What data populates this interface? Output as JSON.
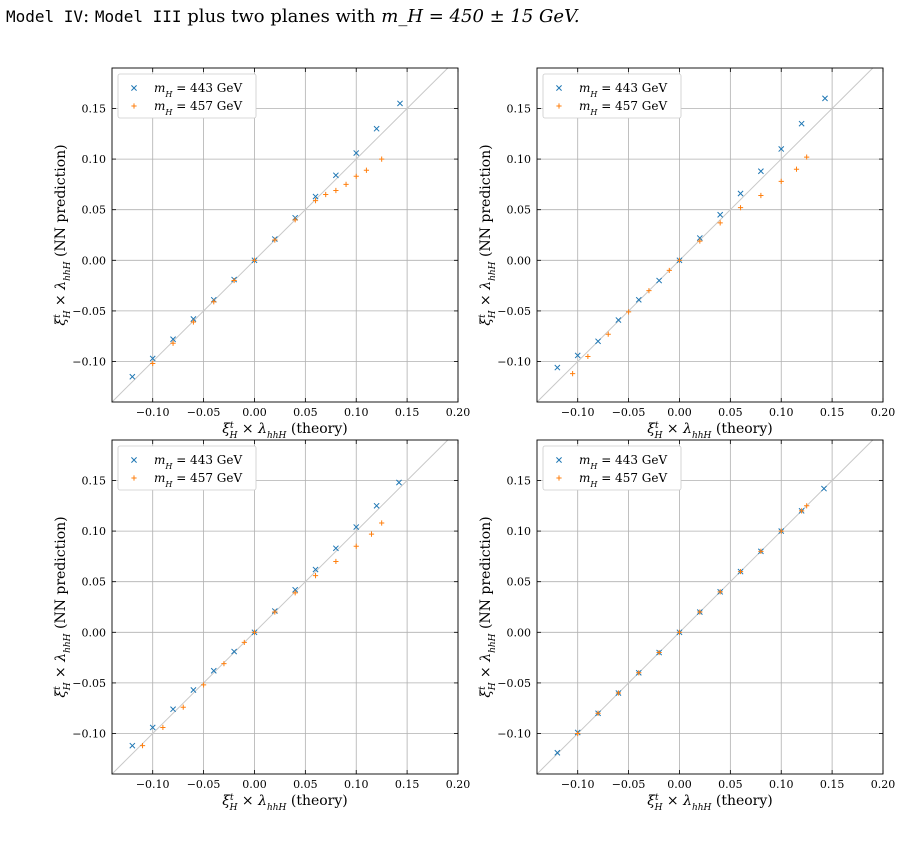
{
  "caption": {
    "model_label": "Model IV",
    "sep": ": ",
    "base_label": "Model III",
    "text": " plus two planes with ",
    "math": "m_H = 450 ± 15 GeV."
  },
  "colors": {
    "series_blue": "#1f77b4",
    "series_orange": "#ff7f0e",
    "diagonal": "#c8c8c8",
    "grid": "#b0b0b0"
  },
  "chart_data": [
    {
      "type": "scatter",
      "xlabel": "ξ_H^t × λ_hhH (theory)",
      "ylabel": "ξ_H^t × λ_hhH (NN prediction)",
      "xlim": [
        -0.14,
        0.2
      ],
      "ylim": [
        -0.14,
        0.19
      ],
      "xticks": [
        "−0.10",
        "−0.05",
        "0.00",
        "0.05",
        "0.10",
        "0.15",
        "0.20"
      ],
      "yticks": [
        "−0.10",
        "−0.05",
        "0.00",
        "0.05",
        "0.10",
        "0.15"
      ],
      "grid": true,
      "legend_position": "top-left",
      "diagonal": true,
      "series": [
        {
          "name": "m_H = 443 GeV",
          "marker": "x",
          "points": [
            [
              -0.12,
              -0.115
            ],
            [
              -0.1,
              -0.097
            ],
            [
              -0.08,
              -0.078
            ],
            [
              -0.06,
              -0.058
            ],
            [
              -0.04,
              -0.039
            ],
            [
              -0.02,
              -0.019
            ],
            [
              0.0,
              0.0
            ],
            [
              0.02,
              0.021
            ],
            [
              0.04,
              0.042
            ],
            [
              0.06,
              0.063
            ],
            [
              0.08,
              0.084
            ],
            [
              0.1,
              0.106
            ],
            [
              0.12,
              0.13
            ],
            [
              0.143,
              0.155
            ]
          ]
        },
        {
          "name": "m_H = 457 GeV",
          "marker": "+",
          "points": [
            [
              -0.1,
              -0.102
            ],
            [
              -0.08,
              -0.082
            ],
            [
              -0.06,
              -0.061
            ],
            [
              -0.04,
              -0.041
            ],
            [
              -0.02,
              -0.02
            ],
            [
              0.0,
              0.0
            ],
            [
              0.02,
              0.02
            ],
            [
              0.04,
              0.04
            ],
            [
              0.06,
              0.059
            ],
            [
              0.07,
              0.065
            ],
            [
              0.08,
              0.069
            ],
            [
              0.09,
              0.075
            ],
            [
              0.1,
              0.083
            ],
            [
              0.11,
              0.089
            ],
            [
              0.125,
              0.1
            ]
          ]
        }
      ]
    },
    {
      "type": "scatter",
      "xlabel": "ξ_H^t × λ_hhH (theory)",
      "ylabel": "ξ_H^t × λ_hhH (NN prediction)",
      "xlim": [
        -0.14,
        0.2
      ],
      "ylim": [
        -0.14,
        0.19
      ],
      "xticks": [
        "−0.10",
        "−0.05",
        "0.00",
        "0.05",
        "0.10",
        "0.15",
        "0.20"
      ],
      "yticks": [
        "−0.10",
        "−0.05",
        "0.00",
        "0.05",
        "0.10",
        "0.15"
      ],
      "grid": true,
      "legend_position": "top-left",
      "diagonal": true,
      "series": [
        {
          "name": "m_H = 443 GeV",
          "marker": "x",
          "points": [
            [
              -0.12,
              -0.106
            ],
            [
              -0.1,
              -0.094
            ],
            [
              -0.08,
              -0.08
            ],
            [
              -0.06,
              -0.059
            ],
            [
              -0.04,
              -0.039
            ],
            [
              -0.02,
              -0.02
            ],
            [
              0.0,
              0.0
            ],
            [
              0.02,
              0.022
            ],
            [
              0.04,
              0.045
            ],
            [
              0.06,
              0.066
            ],
            [
              0.08,
              0.088
            ],
            [
              0.1,
              0.11
            ],
            [
              0.12,
              0.135
            ],
            [
              0.143,
              0.16
            ]
          ]
        },
        {
          "name": "m_H = 457 GeV",
          "marker": "+",
          "points": [
            [
              -0.105,
              -0.112
            ],
            [
              -0.09,
              -0.095
            ],
            [
              -0.07,
              -0.073
            ],
            [
              -0.05,
              -0.051
            ],
            [
              -0.03,
              -0.03
            ],
            [
              -0.01,
              -0.01
            ],
            [
              0.0,
              0.0
            ],
            [
              0.02,
              0.019
            ],
            [
              0.04,
              0.037
            ],
            [
              0.06,
              0.052
            ],
            [
              0.08,
              0.064
            ],
            [
              0.1,
              0.078
            ],
            [
              0.115,
              0.09
            ],
            [
              0.125,
              0.102
            ]
          ]
        }
      ]
    },
    {
      "type": "scatter",
      "xlabel": "ξ_H^t × λ_hhH (theory)",
      "ylabel": "ξ_H^t × λ_hhH (NN prediction)",
      "xlim": [
        -0.14,
        0.2
      ],
      "ylim": [
        -0.14,
        0.19
      ],
      "xticks": [
        "−0.10",
        "−0.05",
        "0.00",
        "0.05",
        "0.10",
        "0.15",
        "0.20"
      ],
      "yticks": [
        "−0.10",
        "−0.05",
        "0.00",
        "0.05",
        "0.10",
        "0.15"
      ],
      "grid": true,
      "legend_position": "top-left",
      "diagonal": true,
      "series": [
        {
          "name": "m_H = 443 GeV",
          "marker": "x",
          "points": [
            [
              -0.12,
              -0.112
            ],
            [
              -0.1,
              -0.094
            ],
            [
              -0.08,
              -0.076
            ],
            [
              -0.06,
              -0.057
            ],
            [
              -0.04,
              -0.038
            ],
            [
              -0.02,
              -0.019
            ],
            [
              0.0,
              0.0
            ],
            [
              0.02,
              0.021
            ],
            [
              0.04,
              0.042
            ],
            [
              0.06,
              0.062
            ],
            [
              0.08,
              0.083
            ],
            [
              0.1,
              0.104
            ],
            [
              0.12,
              0.125
            ],
            [
              0.142,
              0.148
            ]
          ]
        },
        {
          "name": "m_H = 457 GeV",
          "marker": "+",
          "points": [
            [
              -0.11,
              -0.112
            ],
            [
              -0.09,
              -0.094
            ],
            [
              -0.07,
              -0.074
            ],
            [
              -0.05,
              -0.052
            ],
            [
              -0.03,
              -0.031
            ],
            [
              -0.01,
              -0.01
            ],
            [
              0.0,
              0.0
            ],
            [
              0.02,
              0.02
            ],
            [
              0.04,
              0.039
            ],
            [
              0.06,
              0.056
            ],
            [
              0.08,
              0.07
            ],
            [
              0.1,
              0.085
            ],
            [
              0.115,
              0.097
            ],
            [
              0.125,
              0.108
            ]
          ]
        }
      ]
    },
    {
      "type": "scatter",
      "xlabel": "ξ_H^t × λ_hhH (theory)",
      "ylabel": "ξ_H^t × λ_hhH (NN prediction)",
      "xlim": [
        -0.14,
        0.2
      ],
      "ylim": [
        -0.14,
        0.19
      ],
      "xticks": [
        "−0.10",
        "−0.05",
        "0.00",
        "0.05",
        "0.10",
        "0.15",
        "0.20"
      ],
      "yticks": [
        "−0.10",
        "−0.05",
        "0.00",
        "0.05",
        "0.10",
        "0.15"
      ],
      "grid": true,
      "legend_position": "top-left",
      "diagonal": true,
      "series": [
        {
          "name": "m_H = 443 GeV",
          "marker": "x",
          "points": [
            [
              -0.12,
              -0.119
            ],
            [
              -0.1,
              -0.099
            ],
            [
              -0.08,
              -0.08
            ],
            [
              -0.06,
              -0.06
            ],
            [
              -0.04,
              -0.04
            ],
            [
              -0.02,
              -0.02
            ],
            [
              0.0,
              0.0
            ],
            [
              0.02,
              0.02
            ],
            [
              0.04,
              0.04
            ],
            [
              0.06,
              0.06
            ],
            [
              0.08,
              0.08
            ],
            [
              0.1,
              0.1
            ],
            [
              0.12,
              0.12
            ],
            [
              0.142,
              0.142
            ]
          ]
        },
        {
          "name": "m_H = 457 GeV",
          "marker": "+",
          "points": [
            [
              -0.1,
              -0.1
            ],
            [
              -0.08,
              -0.08
            ],
            [
              -0.06,
              -0.06
            ],
            [
              -0.04,
              -0.04
            ],
            [
              -0.02,
              -0.02
            ],
            [
              0.0,
              0.0
            ],
            [
              0.02,
              0.02
            ],
            [
              0.04,
              0.04
            ],
            [
              0.06,
              0.06
            ],
            [
              0.08,
              0.08
            ],
            [
              0.1,
              0.1
            ],
            [
              0.12,
              0.12
            ],
            [
              0.125,
              0.125
            ]
          ]
        }
      ]
    }
  ]
}
